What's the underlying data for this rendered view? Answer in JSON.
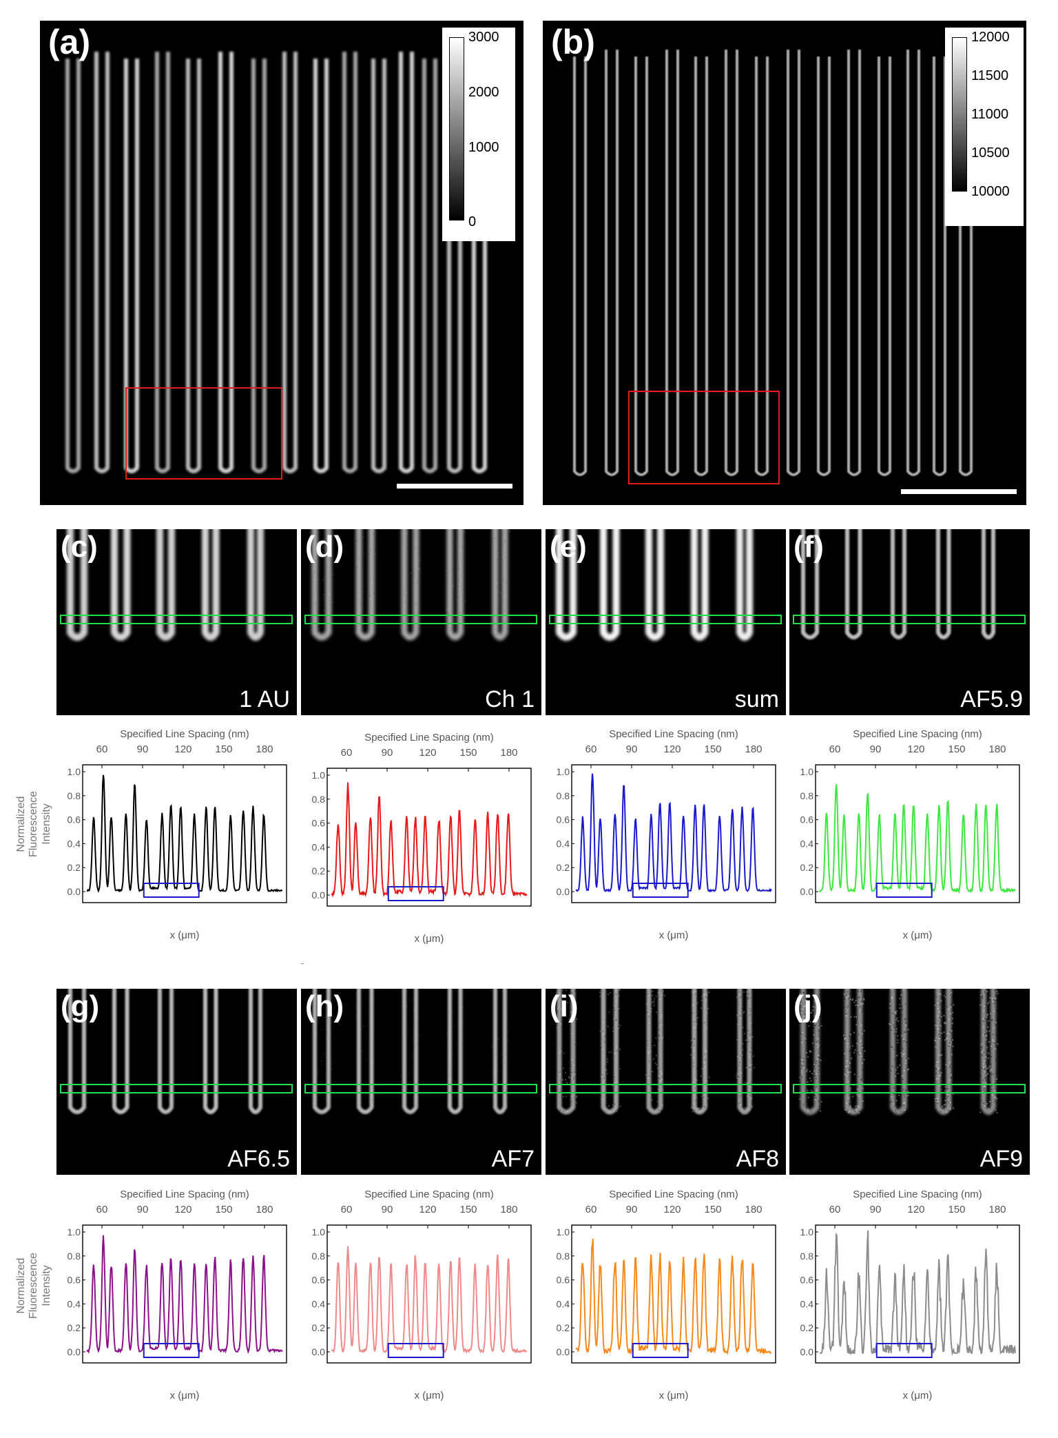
{
  "panel_a": {
    "label": "(a)",
    "colorbar_ticks": [
      "3000",
      "2000",
      "1000",
      "0"
    ]
  },
  "panel_b": {
    "label": "(b)",
    "colorbar_ticks": [
      "12000",
      "11500",
      "11000",
      "10500",
      "10000"
    ]
  },
  "zoom_panels": [
    {
      "label": "(c)",
      "name": "1 AU"
    },
    {
      "label": "(d)",
      "name": "Ch 1"
    },
    {
      "label": "(e)",
      "name": "sum"
    },
    {
      "label": "(f)",
      "name": "AF5.9"
    },
    {
      "label": "(g)",
      "name": "AF6.5"
    },
    {
      "label": "(h)",
      "name": "AF7"
    },
    {
      "label": "(i)",
      "name": "AF8"
    },
    {
      "label": "(j)",
      "name": "AF9"
    }
  ],
  "plot_common": {
    "top_axis_label": "Specified Line Spacing (nm)",
    "x_axis_label": "x (μm)",
    "y_axis_label_line1": "Normalized",
    "y_axis_label_line2": "Fluorescence",
    "y_axis_label_line3": "Intensity",
    "top_ticks": [
      "60",
      "90",
      "120",
      "150",
      "180"
    ],
    "y_ticks": [
      "1.0",
      "0.8",
      "0.6",
      "0.4",
      "0.2",
      "0.0"
    ]
  },
  "chart_data": [
    {
      "type": "line",
      "panel": "(c)",
      "color": "#000000",
      "xlabel": "x (μm)",
      "ylabel": "Normalized Fluorescence Intensity",
      "top_xlabel": "Specified Line Spacing (nm)",
      "ylim": [
        0,
        1.0
      ],
      "peaks": [
        0.63,
        0.99,
        0.63,
        0.65,
        0.9,
        0.6,
        0.65,
        0.72,
        0.71,
        0.64,
        0.71,
        0.71,
        0.64,
        0.68,
        0.71,
        0.64
      ]
    },
    {
      "type": "line",
      "panel": "(d)",
      "color": "#e8191b",
      "xlabel": "x (μm)",
      "ylabel": "Normalized Fluorescence Intensity",
      "top_xlabel": "Specified Line Spacing (nm)",
      "ylim": [
        0,
        1.0
      ],
      "peaks": [
        0.62,
        0.92,
        0.6,
        0.65,
        0.83,
        0.62,
        0.65,
        0.66,
        0.67,
        0.64,
        0.68,
        0.7,
        0.64,
        0.67,
        0.69,
        0.69
      ]
    },
    {
      "type": "line",
      "panel": "(e)",
      "color": "#1a1acc",
      "xlabel": "x (μm)",
      "ylabel": "Normalized Fluorescence Intensity",
      "top_xlabel": "Specified Line Spacing (nm)",
      "ylim": [
        0,
        1.0
      ],
      "peaks": [
        0.62,
        0.99,
        0.62,
        0.65,
        0.9,
        0.61,
        0.65,
        0.75,
        0.75,
        0.64,
        0.72,
        0.73,
        0.64,
        0.69,
        0.7,
        0.7
      ]
    },
    {
      "type": "line",
      "panel": "(f)",
      "color": "#3ee63e",
      "xlabel": "x (μm)",
      "ylabel": "Normalized Fluorescence Intensity",
      "top_xlabel": "Specified Line Spacing (nm)",
      "ylim": [
        0,
        1.0
      ],
      "peaks": [
        0.65,
        0.92,
        0.64,
        0.66,
        0.83,
        0.64,
        0.66,
        0.74,
        0.73,
        0.66,
        0.73,
        0.75,
        0.66,
        0.71,
        0.73,
        0.73
      ]
    },
    {
      "type": "line",
      "panel": "(g)",
      "color": "#8b118b",
      "xlabel": "x (μm)",
      "ylabel": "Normalized Fluorescence Intensity",
      "top_xlabel": "Specified Line Spacing (nm)",
      "ylim": [
        0,
        1.0
      ],
      "peaks": [
        0.73,
        0.96,
        0.73,
        0.75,
        0.84,
        0.72,
        0.76,
        0.79,
        0.78,
        0.74,
        0.76,
        0.79,
        0.75,
        0.78,
        0.78,
        0.8
      ]
    },
    {
      "type": "line",
      "panel": "(h)",
      "color": "#f08a8a",
      "xlabel": "x (μm)",
      "ylabel": "Normalized Fluorescence Intensity",
      "top_xlabel": "Specified Line Spacing (nm)",
      "ylim": [
        0,
        1.0
      ],
      "peaks": [
        0.76,
        0.89,
        0.74,
        0.76,
        0.78,
        0.72,
        0.75,
        0.8,
        0.76,
        0.73,
        0.75,
        0.78,
        0.72,
        0.75,
        0.81,
        0.76
      ]
    },
    {
      "type": "line",
      "panel": "(i)",
      "color": "#f7891a",
      "xlabel": "x (μm)",
      "ylabel": "Normalized Fluorescence Intensity",
      "top_xlabel": "Specified Line Spacing (nm)",
      "ylim": [
        0,
        1.0
      ],
      "peaks": [
        0.78,
        0.94,
        0.76,
        0.77,
        0.75,
        0.76,
        0.78,
        0.79,
        0.78,
        0.77,
        0.79,
        0.8,
        0.76,
        0.79,
        0.79,
        0.78
      ]
    },
    {
      "type": "line",
      "panel": "(j)",
      "color": "#8c8c8c",
      "xlabel": "x (μm)",
      "ylabel": "Normalized Fluorescence Intensity",
      "top_xlabel": "Specified Line Spacing (nm)",
      "ylim": [
        0,
        1.0
      ],
      "peaks": [
        0.6,
        0.91,
        0.58,
        0.62,
        0.92,
        0.64,
        0.62,
        0.66,
        0.68,
        0.61,
        0.68,
        0.75,
        0.6,
        0.66,
        0.82,
        0.73
      ]
    }
  ],
  "colors": {
    "red_box": "#e8191b",
    "green_box": "#22e04a",
    "blue_box": "#1a1acc"
  }
}
